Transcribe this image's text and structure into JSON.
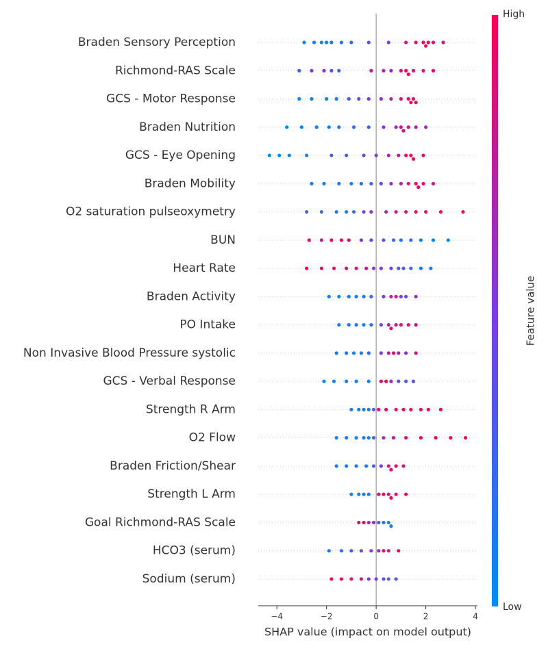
{
  "chart_data": {
    "type": "beeswarm",
    "x_label": "SHAP value (impact on model output)",
    "xlim": [
      -4.75,
      4.08
    ],
    "xticks": [
      {
        "value": -4,
        "label": "−4"
      },
      {
        "value": -2,
        "label": "−2"
      },
      0,
      2,
      4
    ],
    "colorbar": {
      "label": "Feature value",
      "high": "High",
      "low": "Low",
      "colors": [
        "#008bfb",
        "#7b3be6",
        "#ff0052"
      ]
    },
    "features": [
      {
        "name": "Braden Sensory Perception",
        "shap_values": [
          -2.9,
          -2.5,
          -2.2,
          -2.0,
          -1.8,
          -1.4,
          -1.0,
          -0.3,
          0.5,
          1.2,
          1.6,
          1.9,
          2.0,
          2.1,
          2.3,
          2.7
        ],
        "feature_values": [
          0,
          0.1,
          0.05,
          0.1,
          0.15,
          0.1,
          0.2,
          0.3,
          0.5,
          0.8,
          0.9,
          1,
          1,
          0.95,
          0.9,
          0.85
        ]
      },
      {
        "name": "Richmond-RAS Scale",
        "shap_values": [
          -3.1,
          -2.6,
          -2.1,
          -1.8,
          -1.5,
          -0.2,
          0.3,
          0.6,
          1.0,
          1.2,
          1.3,
          1.5,
          1.9,
          2.3
        ],
        "feature_values": [
          0.3,
          0.5,
          0.6,
          0.4,
          0.3,
          0.8,
          0.7,
          0.6,
          0.85,
          0.95,
          1,
          0.9,
          0.8,
          0.95
        ]
      },
      {
        "name": "GCS - Motor Response",
        "shap_values": [
          -3.1,
          -2.6,
          -2.0,
          -1.6,
          -1.1,
          -0.7,
          -0.3,
          0.2,
          0.6,
          1.0,
          1.3,
          1.4,
          1.5,
          1.6
        ],
        "feature_values": [
          0.05,
          0.05,
          0.1,
          0.1,
          0.3,
          0.4,
          0.5,
          0.6,
          0.7,
          0.85,
          0.95,
          1,
          0.9,
          0.95
        ]
      },
      {
        "name": "Braden Nutrition",
        "shap_values": [
          -3.6,
          -3.0,
          -2.4,
          -1.9,
          -1.5,
          -0.9,
          -0.3,
          0.3,
          0.8,
          1.0,
          1.1,
          1.3,
          1.6,
          2.0
        ],
        "feature_values": [
          0,
          0.05,
          0.1,
          0.05,
          0.15,
          0.2,
          0.25,
          0.5,
          0.7,
          0.85,
          0.9,
          0.8,
          0.75,
          0.6
        ]
      },
      {
        "name": "GCS - Eye Opening",
        "shap_values": [
          -4.3,
          -3.9,
          -3.5,
          -2.8,
          -1.8,
          -1.2,
          -0.5,
          0.0,
          0.5,
          0.9,
          1.2,
          1.4,
          1.5,
          1.9
        ],
        "feature_values": [
          0,
          0,
          0.05,
          0.1,
          0.2,
          0.25,
          0.4,
          0.5,
          0.7,
          0.8,
          0.9,
          1,
          0.95,
          0.9
        ]
      },
      {
        "name": "Braden Mobility",
        "shap_values": [
          -2.6,
          -2.1,
          -1.5,
          -1.0,
          -0.6,
          -0.2,
          0.2,
          0.6,
          1.0,
          1.3,
          1.6,
          1.7,
          1.9,
          2.3
        ],
        "feature_values": [
          0.05,
          0.1,
          0.1,
          0.1,
          0.2,
          0.3,
          0.4,
          0.6,
          0.7,
          0.8,
          0.95,
          1,
          0.9,
          0.8
        ]
      },
      {
        "name": "O2 saturation pulseoxymetry",
        "shap_values": [
          -2.8,
          -2.2,
          -1.6,
          -1.2,
          -0.9,
          -0.5,
          -0.2,
          0.4,
          0.8,
          1.2,
          1.6,
          2.0,
          2.6,
          3.5
        ],
        "feature_values": [
          0.3,
          0.2,
          0.15,
          0.1,
          0.2,
          0.4,
          0.6,
          0.7,
          0.8,
          0.85,
          0.9,
          0.95,
          1,
          0.95
        ]
      },
      {
        "name": "BUN",
        "shap_values": [
          -2.7,
          -2.2,
          -1.8,
          -1.4,
          -1.1,
          -0.6,
          -0.2,
          0.3,
          0.7,
          1.0,
          1.4,
          1.8,
          2.3,
          2.9
        ],
        "feature_values": [
          0.9,
          0.7,
          0.95,
          1,
          0.9,
          0.6,
          0.4,
          0.3,
          0.2,
          0.1,
          0.15,
          0.1,
          0.05,
          0
        ]
      },
      {
        "name": "Heart Rate",
        "shap_values": [
          -2.8,
          -2.2,
          -1.7,
          -1.2,
          -0.8,
          -0.4,
          -0.1,
          0.2,
          0.6,
          0.9,
          1.1,
          1.4,
          1.8,
          2.2
        ],
        "feature_values": [
          1,
          0.95,
          0.9,
          0.85,
          0.8,
          0.75,
          0.6,
          0.5,
          0.4,
          0.3,
          0.3,
          0.2,
          0.1,
          0.1
        ]
      },
      {
        "name": "Braden Activity",
        "shap_values": [
          -1.9,
          -1.5,
          -1.1,
          -0.8,
          -0.5,
          -0.2,
          0.3,
          0.6,
          0.8,
          1.0,
          1.2,
          1.6
        ],
        "feature_values": [
          0.05,
          0.05,
          0.1,
          0.1,
          0.1,
          0.2,
          0.5,
          0.7,
          0.8,
          0.5,
          0.4,
          0.6
        ]
      },
      {
        "name": "PO Intake",
        "shap_values": [
          -1.5,
          -1.1,
          -0.8,
          -0.5,
          -0.2,
          0.2,
          0.5,
          0.6,
          0.8,
          1.0,
          1.3,
          1.6
        ],
        "feature_values": [
          0.05,
          0.1,
          0.1,
          0.05,
          0.15,
          0.4,
          0.7,
          0.9,
          0.8,
          0.85,
          0.9,
          0.8
        ]
      },
      {
        "name": "Non Invasive Blood Pressure systolic",
        "shap_values": [
          -1.6,
          -1.2,
          -0.9,
          -0.6,
          -0.3,
          0.2,
          0.5,
          0.7,
          0.9,
          1.2,
          1.6
        ],
        "feature_values": [
          0.1,
          0.1,
          0.05,
          0.1,
          0.2,
          0.5,
          0.8,
          0.9,
          0.7,
          0.6,
          0.85
        ]
      },
      {
        "name": "GCS - Verbal Response",
        "shap_values": [
          -2.1,
          -1.7,
          -1.2,
          -0.8,
          -0.3,
          0.2,
          0.4,
          0.6,
          0.9,
          1.2,
          1.5
        ],
        "feature_values": [
          0.05,
          0.05,
          0.1,
          0.1,
          0.1,
          0.95,
          1,
          0.6,
          0.4,
          0.3,
          0.35
        ]
      },
      {
        "name": "Strength R Arm",
        "shap_values": [
          -1.0,
          -0.7,
          -0.5,
          -0.3,
          -0.1,
          0.1,
          0.4,
          0.8,
          1.1,
          1.4,
          1.8,
          2.1,
          2.6
        ],
        "feature_values": [
          0.1,
          0.05,
          0.1,
          0.15,
          0.3,
          0.9,
          0.95,
          0.9,
          1,
          0.95,
          0.9,
          1,
          1
        ]
      },
      {
        "name": "O2 Flow",
        "shap_values": [
          -1.6,
          -1.2,
          -0.8,
          -0.5,
          -0.3,
          -0.1,
          0.3,
          0.7,
          1.2,
          1.8,
          2.4,
          3.0,
          3.6
        ],
        "feature_values": [
          0.1,
          0.1,
          0.05,
          0.1,
          0.05,
          0.3,
          0.6,
          0.8,
          0.9,
          0.95,
          1,
          1,
          1
        ]
      },
      {
        "name": "Braden Friction/Shear",
        "shap_values": [
          -1.6,
          -1.2,
          -0.8,
          -0.4,
          -0.1,
          0.2,
          0.5,
          0.6,
          0.8,
          1.1
        ],
        "feature_values": [
          0.1,
          0.05,
          0.1,
          0.1,
          0.3,
          0.5,
          0.8,
          0.95,
          0.9,
          0.85
        ]
      },
      {
        "name": "Strength L Arm",
        "shap_values": [
          -1.0,
          -0.7,
          -0.5,
          -0.3,
          0.1,
          0.3,
          0.5,
          0.6,
          0.8,
          1.2
        ],
        "feature_values": [
          0.05,
          0.1,
          0.05,
          0.1,
          0.9,
          0.95,
          0.85,
          1,
          0.9,
          0.95
        ]
      },
      {
        "name": "Goal Richmond-RAS Scale",
        "shap_values": [
          -0.7,
          -0.5,
          -0.3,
          -0.1,
          0.1,
          0.3,
          0.5,
          0.6
        ],
        "feature_values": [
          0.95,
          0.9,
          0.7,
          0.6,
          0.3,
          0.1,
          0.05,
          0.1
        ]
      },
      {
        "name": "HCO3 (serum)",
        "shap_values": [
          -1.9,
          -1.4,
          -1.0,
          -0.6,
          -0.2,
          0.1,
          0.3,
          0.5,
          0.9
        ],
        "feature_values": [
          0.1,
          0.2,
          0.3,
          0.4,
          0.5,
          0.6,
          0.9,
          0.8,
          0.95
        ]
      },
      {
        "name": "Sodium (serum)",
        "shap_values": [
          -1.8,
          -1.4,
          -1.0,
          -0.6,
          -0.3,
          0.0,
          0.3,
          0.5,
          0.8
        ],
        "feature_values": [
          1,
          0.95,
          0.9,
          0.85,
          0.6,
          0.5,
          0.4,
          0.3,
          0.35
        ]
      }
    ]
  }
}
